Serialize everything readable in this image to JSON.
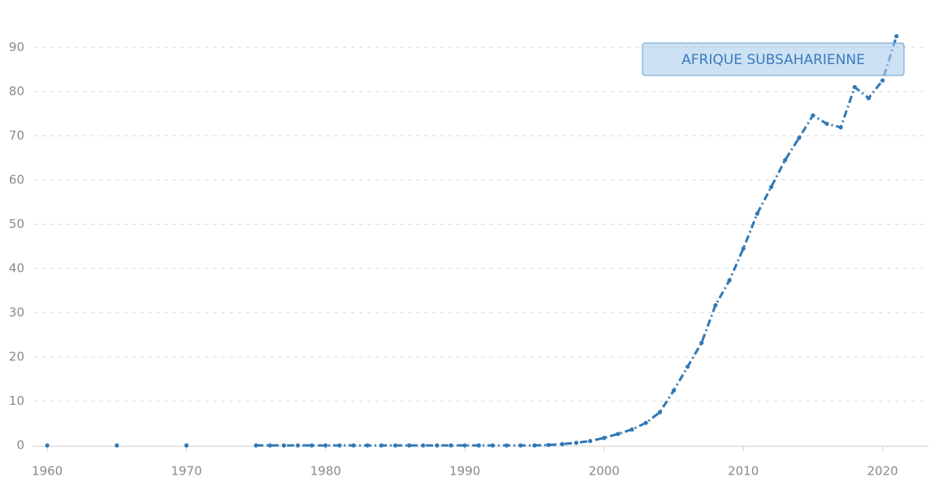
{
  "chart_data": {
    "type": "line",
    "x": [
      1960,
      1961,
      1962,
      1963,
      1964,
      1965,
      1966,
      1967,
      1968,
      1969,
      1970,
      1971,
      1972,
      1973,
      1974,
      1975,
      1976,
      1977,
      1978,
      1979,
      1980,
      1981,
      1982,
      1983,
      1984,
      1985,
      1986,
      1987,
      1988,
      1989,
      1990,
      1991,
      1992,
      1993,
      1994,
      1995,
      1996,
      1997,
      1998,
      1999,
      2000,
      2001,
      2002,
      2003,
      2004,
      2005,
      2006,
      2007,
      2008,
      2009,
      2010,
      2011,
      2012,
      2013,
      2014,
      2015,
      2016,
      2017,
      2018,
      2019,
      2020,
      2021
    ],
    "series": [
      {
        "name": "AFRIQUE SUBSAHARIENNE",
        "color": "#2f78b6",
        "values": [
          0,
          null,
          null,
          null,
          null,
          0,
          null,
          null,
          null,
          null,
          0,
          null,
          null,
          null,
          null,
          0,
          0,
          0,
          0,
          0,
          0,
          0,
          0,
          0,
          0,
          0,
          0,
          0,
          0,
          0,
          0,
          0,
          0,
          0,
          0,
          0,
          0.1,
          0.3,
          0.6,
          1.0,
          1.7,
          2.6,
          3.6,
          5.1,
          7.5,
          12.4,
          17.8,
          23.2,
          31.7,
          37.3,
          44.5,
          52.4,
          58.4,
          64.5,
          69.5,
          74.6,
          72.7,
          71.9,
          81.0,
          78.5,
          82.5,
          92.5
        ]
      }
    ],
    "xlim": [
      1959,
      2023
    ],
    "xticks": [
      1960,
      1970,
      1980,
      1990,
      2000,
      2010,
      2020
    ],
    "ylim": [
      0,
      95
    ],
    "yticks": [
      0,
      10,
      20,
      30,
      40,
      50,
      60,
      70,
      80,
      90
    ],
    "grid": true
  }
}
